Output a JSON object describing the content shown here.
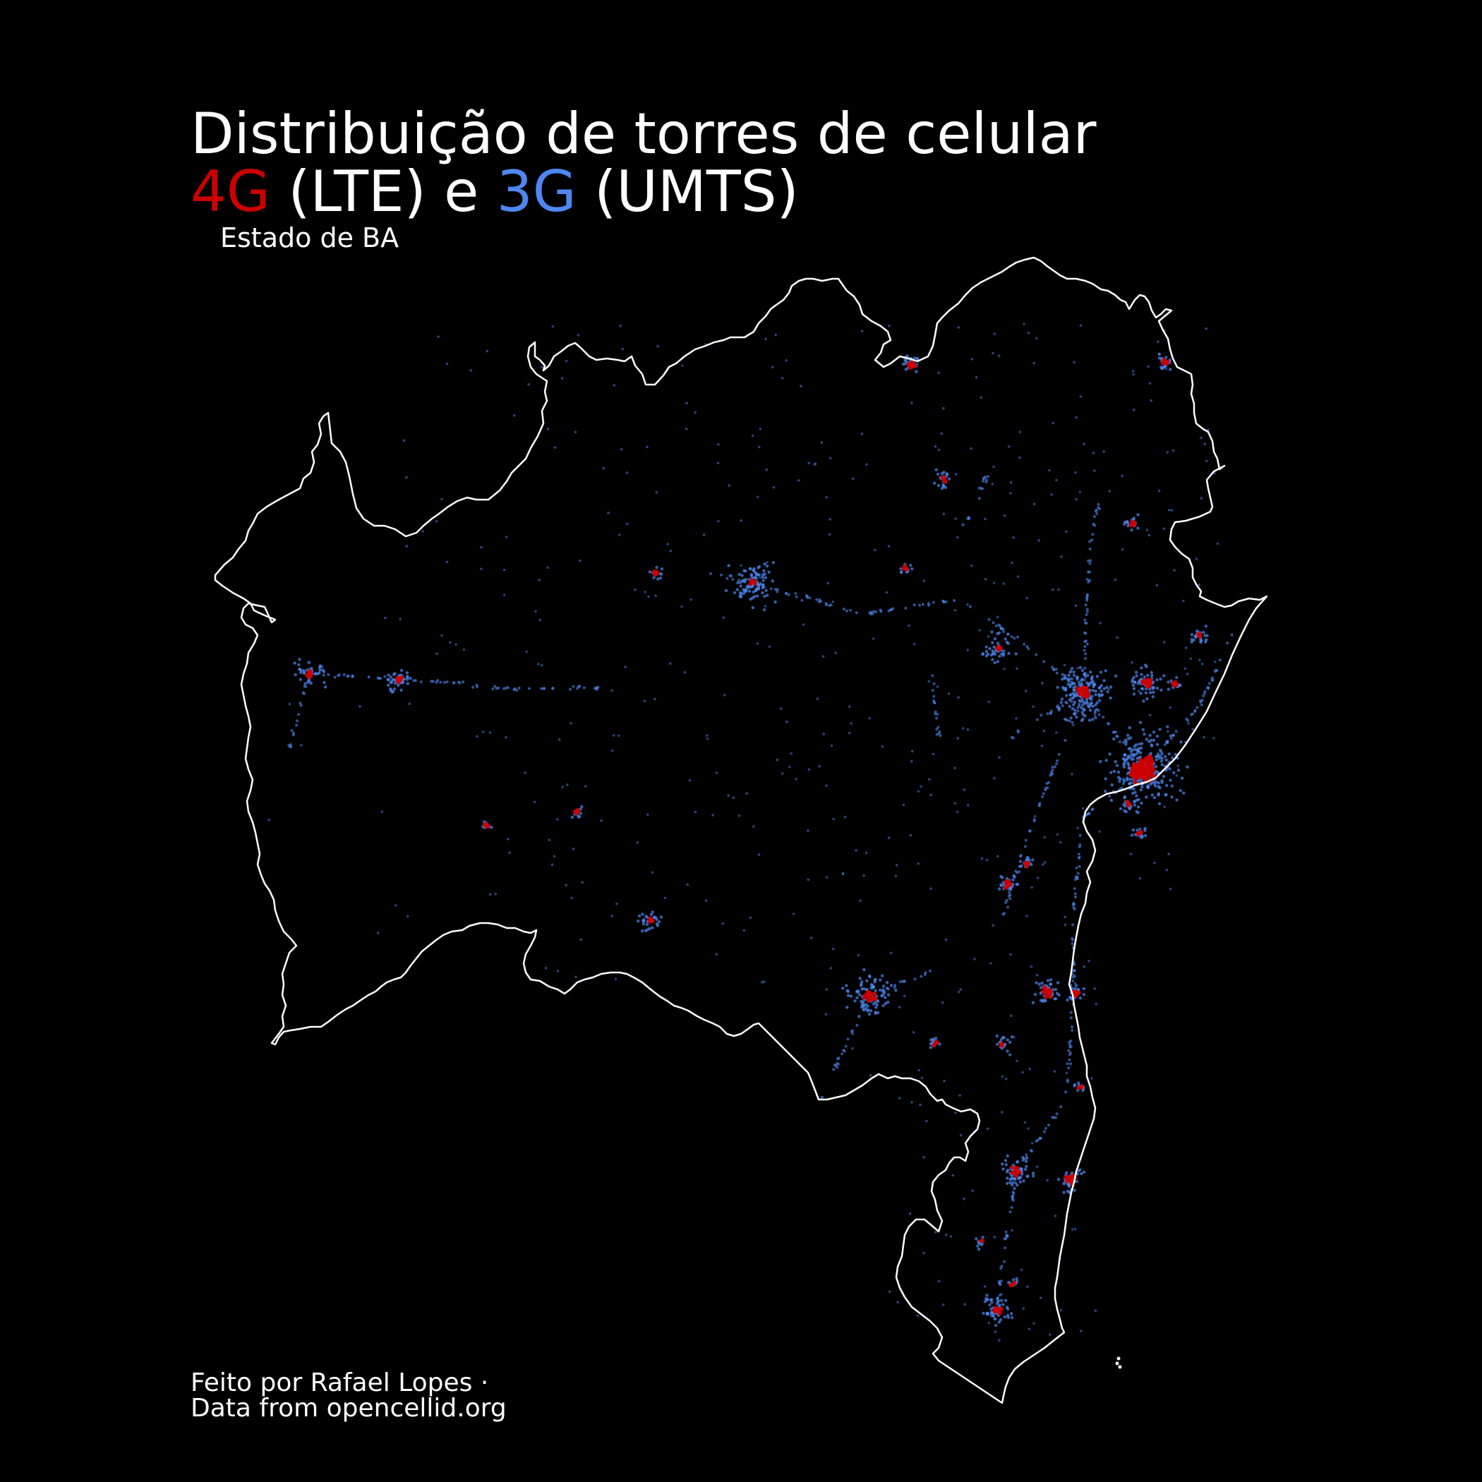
{
  "title": {
    "line1": "Distribuição de torres de celular",
    "lte_label": "4G",
    "lte_suffix": " (LTE) e ",
    "umts_label": "3G",
    "umts_suffix": " (UMTS)"
  },
  "subtitle": "Estado de BA",
  "credits": {
    "line1": "Feito por Rafael Lopes ·",
    "line2": "Data from opencellid.org"
  },
  "colors": {
    "background": "#000000",
    "text": "#ffffff",
    "border": "#ffffff",
    "lte": "#cc0000",
    "umts": "#4f87f0"
  },
  "map": {
    "region": "BA",
    "layers": [
      "state-border",
      "umts-towers",
      "lte-towers"
    ]
  }
}
